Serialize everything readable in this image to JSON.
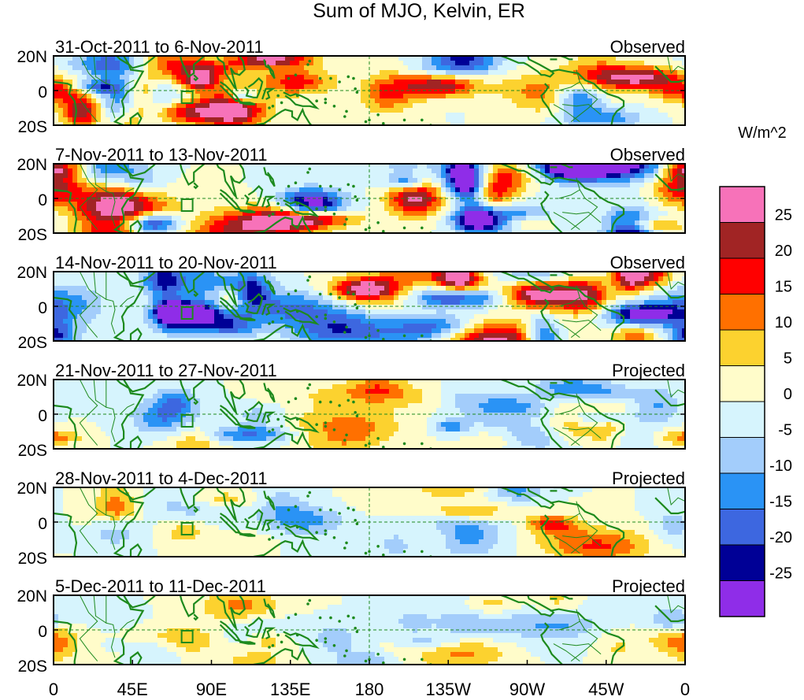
{
  "figure": {
    "title": "Sum of MJO, Kelvin, ER"
  },
  "panels": [
    {
      "date_range": "31-Oct-2011 to 6-Nov-2011",
      "status": "Observed",
      "strength": 1.0,
      "seed": 1
    },
    {
      "date_range": "7-Nov-2011 to 13-Nov-2011",
      "status": "Observed",
      "strength": 1.0,
      "seed": 2
    },
    {
      "date_range": "14-Nov-2011 to 20-Nov-2011",
      "status": "Observed",
      "strength": 0.95,
      "seed": 3
    },
    {
      "date_range": "21-Nov-2011 to 27-Nov-2011",
      "status": "Projected",
      "strength": 0.55,
      "seed": 4
    },
    {
      "date_range": "28-Nov-2011 to 4-Dec-2011",
      "status": "Projected",
      "strength": 0.42,
      "seed": 5
    },
    {
      "date_range": "5-Dec-2011 to 11-Dec-2011",
      "status": "Projected",
      "strength": 0.38,
      "seed": 6
    }
  ],
  "lat_ticks": [
    "20N",
    "0",
    "20S"
  ],
  "lon_ticks": [
    "0",
    "45E",
    "90E",
    "135E",
    "180",
    "135W",
    "90W",
    "45W",
    "0"
  ],
  "colorbar": {
    "units": "W/m^2",
    "labels": [
      "25",
      "20",
      "15",
      "10",
      "5",
      "0",
      "-5",
      "-10",
      "-15",
      "-20",
      "-25"
    ],
    "colors": [
      "#f772b9",
      "#a12424",
      "#ff0000",
      "#ff7000",
      "#fcd22f",
      "#fffcca",
      "#d6f4fd",
      "#a3cdfb",
      "#2a93f5",
      "#3d67e0",
      "#000096",
      "#8f2de8"
    ]
  },
  "colors": {
    "coastline": "#1d8a1d",
    "equator_line": "#1d8a1d"
  }
}
